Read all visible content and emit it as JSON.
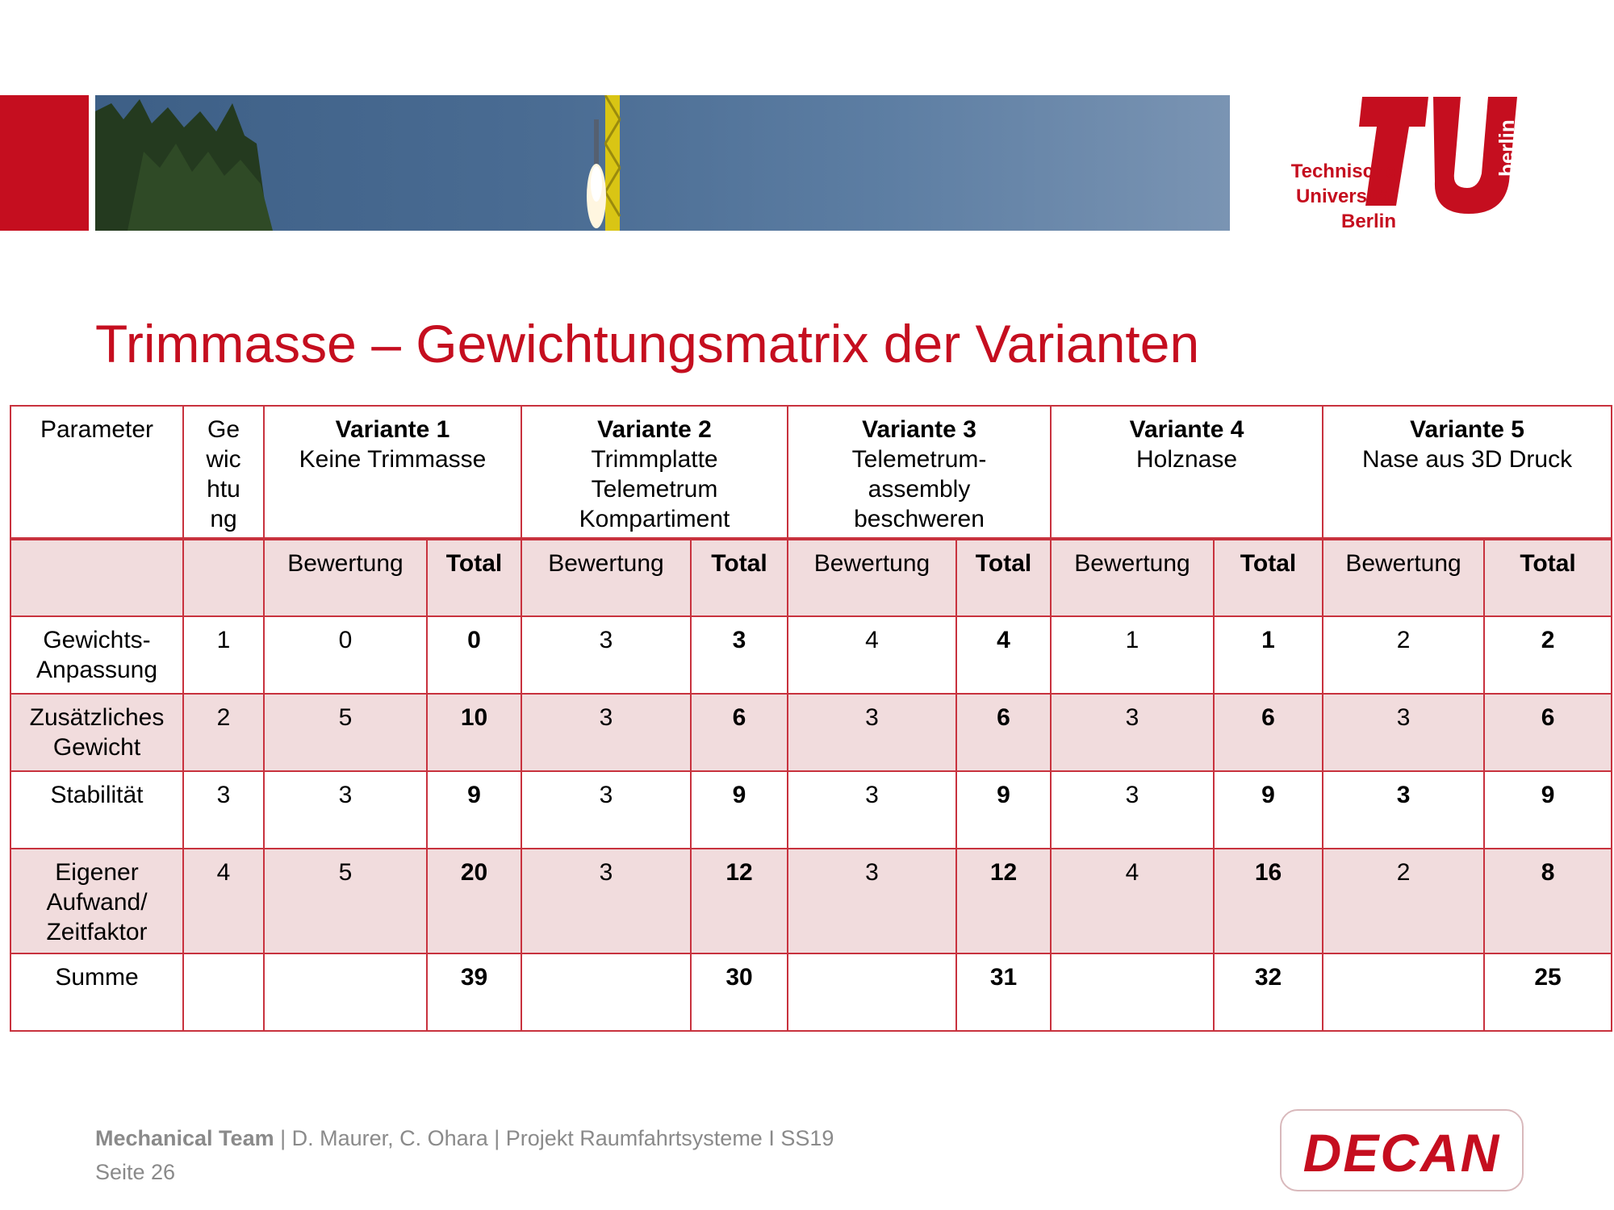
{
  "logo": {
    "lines": [
      "Technische",
      "Universität",
      "Berlin"
    ],
    "side": "berlin"
  },
  "title": "Trimmasse – Gewichtungsmatrix der Varianten",
  "table": {
    "header": {
      "parameter": "Parameter",
      "weight": [
        "Ge",
        "wic",
        "htu",
        "ng"
      ],
      "variants": [
        {
          "name": "Variante 1",
          "desc": [
            "Keine Trimmasse"
          ]
        },
        {
          "name": "Variante 2",
          "desc": [
            "Trimmplatte",
            "Telemetrum",
            "Kompartiment"
          ]
        },
        {
          "name": "Variante 3",
          "desc": [
            "Telemetrum-",
            "assembly",
            "beschweren"
          ]
        },
        {
          "name": "Variante 4",
          "desc": [
            "Holznase"
          ]
        },
        {
          "name": "Variante 5",
          "desc": [
            "Nase aus 3D Druck"
          ]
        }
      ]
    },
    "subheader": {
      "rating": "Bewertung",
      "total": "Total"
    },
    "rows": [
      {
        "param": [
          "Gewichts-",
          "Anpassung"
        ],
        "weight": "1",
        "scores": [
          [
            "0",
            "0"
          ],
          [
            "3",
            "3"
          ],
          [
            "4",
            "4"
          ],
          [
            "1",
            "1"
          ],
          [
            "2",
            "2"
          ]
        ]
      },
      {
        "param": [
          "Zusätzliches",
          "Gewicht"
        ],
        "weight": "2",
        "scores": [
          [
            "5",
            "10"
          ],
          [
            "3",
            "6"
          ],
          [
            "3",
            "6"
          ],
          [
            "3",
            "6"
          ],
          [
            "3",
            "6"
          ]
        ]
      },
      {
        "param": [
          "Stabilität"
        ],
        "weight": "3",
        "scores": [
          [
            "3",
            "9"
          ],
          [
            "3",
            "9"
          ],
          [
            "3",
            "9"
          ],
          [
            "3",
            "9"
          ],
          [
            "3",
            "9"
          ]
        ]
      },
      {
        "param": [
          "Eigener",
          "Aufwand/",
          "Zeitfaktor"
        ],
        "weight": "4",
        "scores": [
          [
            "5",
            "20"
          ],
          [
            "3",
            "12"
          ],
          [
            "3",
            "12"
          ],
          [
            "4",
            "16"
          ],
          [
            "2",
            "8"
          ]
        ]
      }
    ],
    "sum": {
      "label": "Summe",
      "totals": [
        "39",
        "30",
        "31",
        "32",
        "25"
      ]
    }
  },
  "footer": {
    "team": "Mechanical Team",
    "sep": " |  ",
    "rest": "D. Maurer, C. Ohara | Projekt Raumfahrtsysteme I SS19",
    "page": "Seite 26"
  },
  "decan_logo": "DECAN",
  "colors": {
    "brand_red": "#c50e1f",
    "grid_red": "#c8323e",
    "shade": "#f1dcdd",
    "footer_gray": "#8a8a8a"
  }
}
